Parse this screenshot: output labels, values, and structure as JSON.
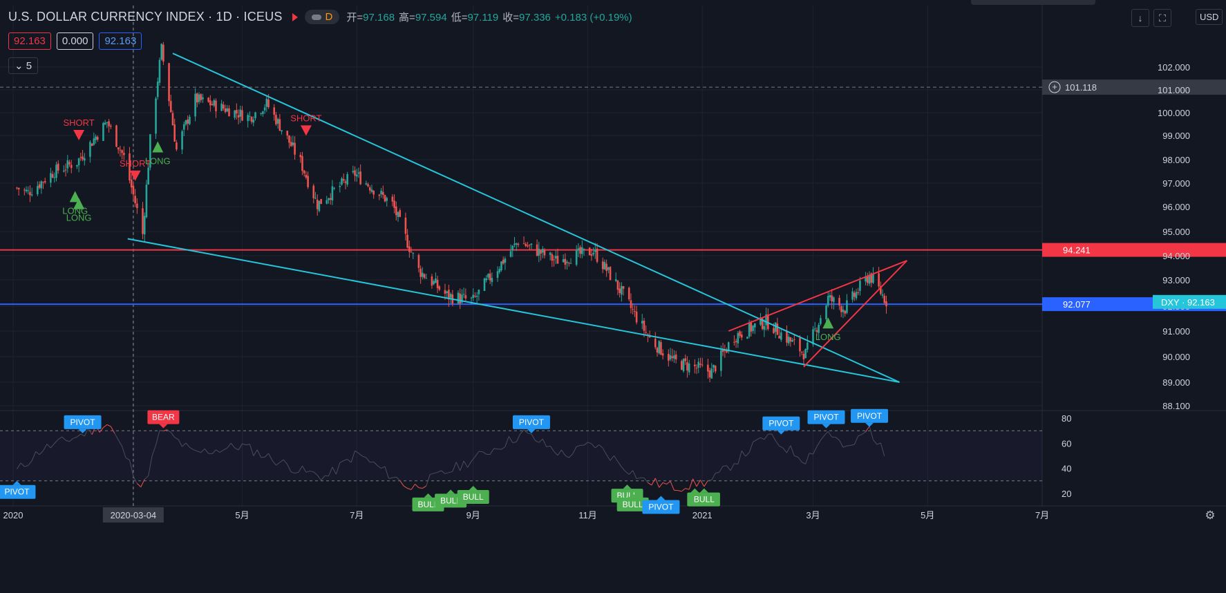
{
  "header": {
    "symbol": "U.S. DOLLAR CURRENCY INDEX · 1D · ICEUS",
    "interval_badge": "D",
    "ohlc": [
      {
        "label": "开=",
        "value": "97.168"
      },
      {
        "label": "高=",
        "value": "97.594"
      },
      {
        "label": "低=",
        "value": "97.119"
      },
      {
        "label": "收=",
        "value": "97.336"
      },
      {
        "label": "",
        "value": "+0.183 (+0.19%)"
      }
    ],
    "bid": "92.163",
    "spread": "0.000",
    "ask": "92.163",
    "indicators_count": "5",
    "currency": "USD"
  },
  "colors": {
    "background": "#131722",
    "up": "#26a69a",
    "down": "#ef5350",
    "trendline": "#26c6da",
    "resistance": "#f23645",
    "support_blue": "#2962ff",
    "label_blue": "#2196f3",
    "label_green": "#4caf50"
  },
  "chart_data": [
    {
      "type": "candlestick",
      "title": "U.S. DOLLAR CURRENCY INDEX · 1D · ICEUS",
      "x_axis_labels": [
        "2020",
        "2020-03-04",
        "5月",
        "7月",
        "9月",
        "11月",
        "2021",
        "3月",
        "5月",
        "7月"
      ],
      "y_axis_ticks": [
        "102.000",
        "101.000",
        "100.000",
        "99.000",
        "98.000",
        "97.000",
        "96.000",
        "95.000",
        "94.000",
        "93.000",
        "92.000",
        "91.000",
        "90.000",
        "89.000",
        "88.100"
      ],
      "ylim": [
        88.1,
        102.8
      ],
      "approx_close_path": [
        {
          "date": "2020-01-02",
          "close": 96.8
        },
        {
          "date": "2020-01-08",
          "close": 96.6
        },
        {
          "date": "2020-01-22",
          "close": 97.5
        },
        {
          "date": "2020-02-03",
          "close": 97.9
        },
        {
          "date": "2020-02-19",
          "close": 99.6
        },
        {
          "date": "2020-02-28",
          "close": 98.1
        },
        {
          "date": "2020-03-09",
          "close": 94.9
        },
        {
          "date": "2020-03-13",
          "close": 98.8
        },
        {
          "date": "2020-03-19",
          "close": 102.8
        },
        {
          "date": "2020-03-27",
          "close": 98.4
        },
        {
          "date": "2020-04-06",
          "close": 100.6
        },
        {
          "date": "2020-04-21",
          "close": 100.2
        },
        {
          "date": "2020-05-05",
          "close": 99.8
        },
        {
          "date": "2020-05-14",
          "close": 100.4
        },
        {
          "date": "2020-06-01",
          "close": 97.9
        },
        {
          "date": "2020-06-10",
          "close": 96.1
        },
        {
          "date": "2020-06-30",
          "close": 97.4
        },
        {
          "date": "2020-07-20",
          "close": 96.1
        },
        {
          "date": "2020-08-03",
          "close": 93.4
        },
        {
          "date": "2020-08-18",
          "close": 92.4
        },
        {
          "date": "2020-09-01",
          "close": 92.2
        },
        {
          "date": "2020-09-25",
          "close": 94.6
        },
        {
          "date": "2020-10-15",
          "close": 93.8
        },
        {
          "date": "2020-11-04",
          "close": 94.2
        },
        {
          "date": "2020-11-20",
          "close": 92.4
        },
        {
          "date": "2020-12-04",
          "close": 90.7
        },
        {
          "date": "2020-12-17",
          "close": 89.8
        },
        {
          "date": "2021-01-06",
          "close": 89.4
        },
        {
          "date": "2021-01-18",
          "close": 90.8
        },
        {
          "date": "2021-02-04",
          "close": 91.4
        },
        {
          "date": "2021-02-25",
          "close": 90.1
        },
        {
          "date": "2021-03-09",
          "close": 92.3
        },
        {
          "date": "2021-03-18",
          "close": 91.9
        },
        {
          "date": "2021-03-31",
          "close": 93.2
        },
        {
          "date": "2021-04-09",
          "close": 92.2
        }
      ],
      "horizontal_lines": [
        {
          "price": 94.241,
          "color": "#f23645",
          "label": "94.241"
        },
        {
          "price": 92.077,
          "color": "#2962ff",
          "label": "92.077"
        },
        {
          "price": 101.118,
          "style": "dashed",
          "label": "101.118"
        }
      ],
      "current_price_label": "DXY · 92.163",
      "trendlines": [
        {
          "color": "#26c6da",
          "from": {
            "date": "2020-03-25",
            "price": 102.6
          },
          "to": {
            "date": "2021-04-16",
            "price": 89.0
          }
        },
        {
          "color": "#26c6da",
          "from": {
            "date": "2020-03-01",
            "price": 94.7
          },
          "to": {
            "date": "2021-04-16",
            "price": 89.0
          }
        },
        {
          "color": "#f23645",
          "from": {
            "date": "2021-01-15",
            "price": 91.0
          },
          "to": {
            "date": "2021-04-20",
            "price": 93.8
          }
        },
        {
          "color": "#f23645",
          "from": {
            "date": "2021-02-24",
            "price": 89.6
          },
          "to": {
            "date": "2021-04-20",
            "price": 93.8
          }
        }
      ],
      "signals": [
        {
          "text": "SHORT",
          "kind": "short",
          "date": "2020-02-04",
          "price": 99.0
        },
        {
          "text": "LONG",
          "kind": "long",
          "date": "2020-02-02",
          "price": 96.4
        },
        {
          "text": "LONG",
          "kind": "long",
          "date": "2020-02-04",
          "price": 96.1
        },
        {
          "text": "SHORT",
          "kind": "short",
          "date": "2020-03-05",
          "price": 97.3
        },
        {
          "text": "LONG",
          "kind": "long",
          "date": "2020-03-17",
          "price": 98.5
        },
        {
          "text": "SHORT",
          "kind": "short",
          "date": "2020-06-04",
          "price": 99.2
        },
        {
          "text": "LONG",
          "kind": "long",
          "date": "2021-03-09",
          "price": 91.3
        }
      ]
    },
    {
      "type": "line",
      "title": "",
      "y_axis_ticks": [
        "80",
        "60",
        "40",
        "20"
      ],
      "ylim": [
        10,
        85
      ],
      "overbought": 70,
      "oversold": 30,
      "approx_values": [
        {
          "date": "2020-01-02",
          "value": 38
        },
        {
          "date": "2020-01-15",
          "value": 55
        },
        {
          "date": "2020-02-04",
          "value": 66
        },
        {
          "date": "2020-02-20",
          "value": 76
        },
        {
          "date": "2020-03-09",
          "value": 23
        },
        {
          "date": "2020-03-19",
          "value": 72
        },
        {
          "date": "2020-04-05",
          "value": 52
        },
        {
          "date": "2020-05-01",
          "value": 58
        },
        {
          "date": "2020-06-01",
          "value": 38
        },
        {
          "date": "2020-06-15",
          "value": 33
        },
        {
          "date": "2020-07-01",
          "value": 52
        },
        {
          "date": "2020-07-30",
          "value": 24
        },
        {
          "date": "2020-08-25",
          "value": 42
        },
        {
          "date": "2020-09-28",
          "value": 68
        },
        {
          "date": "2020-10-20",
          "value": 50
        },
        {
          "date": "2020-11-04",
          "value": 60
        },
        {
          "date": "2020-12-01",
          "value": 30
        },
        {
          "date": "2020-12-18",
          "value": 25
        },
        {
          "date": "2021-01-06",
          "value": 30
        },
        {
          "date": "2021-02-04",
          "value": 66
        },
        {
          "date": "2021-02-25",
          "value": 47
        },
        {
          "date": "2021-03-09",
          "value": 70
        },
        {
          "date": "2021-03-19",
          "value": 54
        },
        {
          "date": "2021-03-31",
          "value": 72
        },
        {
          "date": "2021-04-09",
          "value": 48
        }
      ],
      "labels": [
        {
          "text": "PIVOT",
          "date": "2020-01-02",
          "value": 30,
          "color": "#2196f3"
        },
        {
          "text": "PIVOT",
          "date": "2020-02-06",
          "value": 68,
          "color": "#2196f3"
        },
        {
          "text": "BEAR",
          "date": "2020-03-20",
          "value": 72,
          "color": "#f23645"
        },
        {
          "text": "PIVOT",
          "date": "2020-10-02",
          "value": 68,
          "color": "#2196f3"
        },
        {
          "text": "BULL",
          "date": "2020-08-08",
          "value": 20,
          "color": "#4caf50"
        },
        {
          "text": "BULL",
          "date": "2020-08-20",
          "value": 23,
          "color": "#4caf50"
        },
        {
          "text": "BULL",
          "date": "2020-09-01",
          "value": 26,
          "color": "#4caf50"
        },
        {
          "text": "BULL",
          "date": "2020-11-22",
          "value": 27,
          "color": "#4caf50"
        },
        {
          "text": "BULL",
          "date": "2020-11-25",
          "value": 20,
          "color": "#4caf50"
        },
        {
          "text": "PIVOT",
          "date": "2020-12-10",
          "value": 18,
          "color": "#2196f3"
        },
        {
          "text": "B",
          "date": "2020-12-28",
          "value": 24,
          "color": "#4caf50"
        },
        {
          "text": "BULL",
          "date": "2021-01-02",
          "value": 24,
          "color": "#4caf50"
        },
        {
          "text": "PIVOT",
          "date": "2021-02-12",
          "value": 67,
          "color": "#2196f3"
        },
        {
          "text": "PIVOT",
          "date": "2021-03-08",
          "value": 72,
          "color": "#2196f3"
        },
        {
          "text": "PIVOT",
          "date": "2021-03-31",
          "value": 73,
          "color": "#2196f3"
        }
      ]
    }
  ]
}
